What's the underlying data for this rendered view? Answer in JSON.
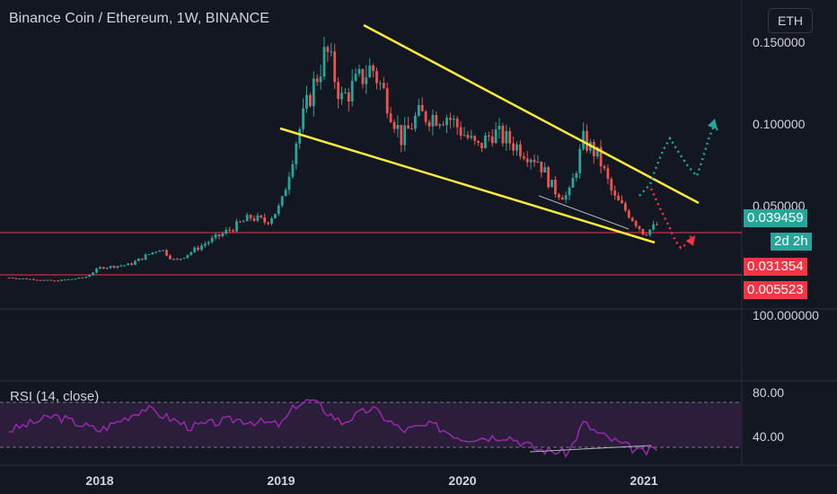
{
  "header": {
    "title": "Binance Coin / Ethereum, 1W, BINANCE",
    "currency_button": "ETH"
  },
  "rsi": {
    "label": "RSI (14, close)",
    "levels": [
      "80.00",
      "40.00"
    ]
  },
  "price_axis": {
    "ticks": [
      "0.150000",
      "0.100000",
      "0.050000"
    ],
    "lower_label": "100.000000"
  },
  "time_axis": {
    "ticks": [
      "2018",
      "2019",
      "2020",
      "2021"
    ]
  },
  "tags": {
    "last_price": "0.039459",
    "countdown": "2d 2h",
    "level_1": "0.031354",
    "level_2": "0.005523"
  },
  "colors": {
    "background": "#131722",
    "up": "#26a69a",
    "down": "#ef5350",
    "trendline": "#ffeb3b",
    "support": "#f23645",
    "rsi": "#9c27b0",
    "rsi_band": "#2a1e3a"
  },
  "chart_data": {
    "type": "candlestick",
    "symbol": "Binance Coin / Ethereum",
    "interval": "1W",
    "exchange": "BINANCE",
    "quote_currency": "ETH",
    "last_price": 0.039459,
    "horizontal_levels": [
      0.031354,
      0.005523
    ],
    "y_ticks": [
      0.15,
      0.1,
      0.05
    ],
    "close_series": [
      {
        "date": "2017-07",
        "close": 0.006
      },
      {
        "date": "2017-10",
        "close": 0.004
      },
      {
        "date": "2017-12",
        "close": 0.006
      },
      {
        "date": "2018-01",
        "close": 0.012
      },
      {
        "date": "2018-03",
        "close": 0.014
      },
      {
        "date": "2018-05",
        "close": 0.024
      },
      {
        "date": "2018-06",
        "close": 0.016
      },
      {
        "date": "2018-08",
        "close": 0.027
      },
      {
        "date": "2018-09",
        "close": 0.032
      },
      {
        "date": "2018-11",
        "close": 0.043
      },
      {
        "date": "2018-12",
        "close": 0.04
      },
      {
        "date": "2019-01",
        "close": 0.05
      },
      {
        "date": "2019-02",
        "close": 0.09
      },
      {
        "date": "2019-03",
        "close": 0.12
      },
      {
        "date": "2019-04",
        "close": 0.145
      },
      {
        "date": "2019-05",
        "close": 0.115
      },
      {
        "date": "2019-06",
        "close": 0.125
      },
      {
        "date": "2019-07",
        "close": 0.135
      },
      {
        "date": "2019-08",
        "close": 0.115
      },
      {
        "date": "2019-09",
        "close": 0.09
      },
      {
        "date": "2019-10",
        "close": 0.105
      },
      {
        "date": "2019-12",
        "close": 0.105
      },
      {
        "date": "2020-02",
        "close": 0.085
      },
      {
        "date": "2020-03",
        "close": 0.095
      },
      {
        "date": "2020-04",
        "close": 0.09
      },
      {
        "date": "2020-06",
        "close": 0.078
      },
      {
        "date": "2020-07",
        "close": 0.06
      },
      {
        "date": "2020-08",
        "close": 0.055
      },
      {
        "date": "2020-09",
        "close": 0.09
      },
      {
        "date": "2020-10",
        "close": 0.08
      },
      {
        "date": "2020-11",
        "close": 0.055
      },
      {
        "date": "2020-12",
        "close": 0.045
      },
      {
        "date": "2021-01",
        "close": 0.033
      },
      {
        "date": "2021-02",
        "close": 0.039
      }
    ],
    "rsi_series": [
      {
        "date": "2017-07",
        "value": 55
      },
      {
        "date": "2017-10",
        "value": 68
      },
      {
        "date": "2018-01",
        "value": 55
      },
      {
        "date": "2018-04",
        "value": 75
      },
      {
        "date": "2018-07",
        "value": 58
      },
      {
        "date": "2018-10",
        "value": 65
      },
      {
        "date": "2019-01",
        "value": 60
      },
      {
        "date": "2019-02",
        "value": 78
      },
      {
        "date": "2019-03",
        "value": 82
      },
      {
        "date": "2019-05",
        "value": 62
      },
      {
        "date": "2019-07",
        "value": 75
      },
      {
        "date": "2019-09",
        "value": 55
      },
      {
        "date": "2019-11",
        "value": 60
      },
      {
        "date": "2020-01",
        "value": 48
      },
      {
        "date": "2020-04",
        "value": 50
      },
      {
        "date": "2020-06",
        "value": 38
      },
      {
        "date": "2020-08",
        "value": 35
      },
      {
        "date": "2020-09",
        "value": 62
      },
      {
        "date": "2020-10",
        "value": 52
      },
      {
        "date": "2020-12",
        "value": 40
      },
      {
        "date": "2021-01",
        "value": 35
      },
      {
        "date": "2021-02",
        "value": 40
      }
    ],
    "rsi_levels": [
      80,
      40
    ]
  }
}
